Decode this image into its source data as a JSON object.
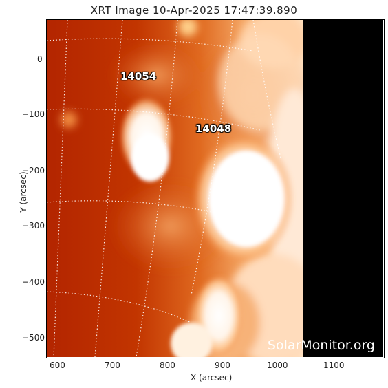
{
  "title": "XRT Image 10-Apr-2025 17:47:39.890",
  "watermark": "SolarMonitor.org",
  "active_regions": [
    {
      "id": "ar-14054",
      "label": "14054"
    },
    {
      "id": "ar-14048",
      "label": "14048"
    }
  ],
  "axes": {
    "x_label": "X (arcsec)",
    "y_label": "Y (arcsec)",
    "x_ticks": [
      "600",
      "700",
      "800",
      "900",
      "1000",
      "1100"
    ],
    "y_ticks": [
      "0",
      "−100",
      "−200",
      "−300",
      "−400",
      "−500"
    ]
  },
  "colors": {
    "disk_dark": "#b42a00",
    "disk_mid": "#e0641a",
    "bright": "#ffffff",
    "off_limb": "#000000",
    "grid": "#ffffff"
  }
}
